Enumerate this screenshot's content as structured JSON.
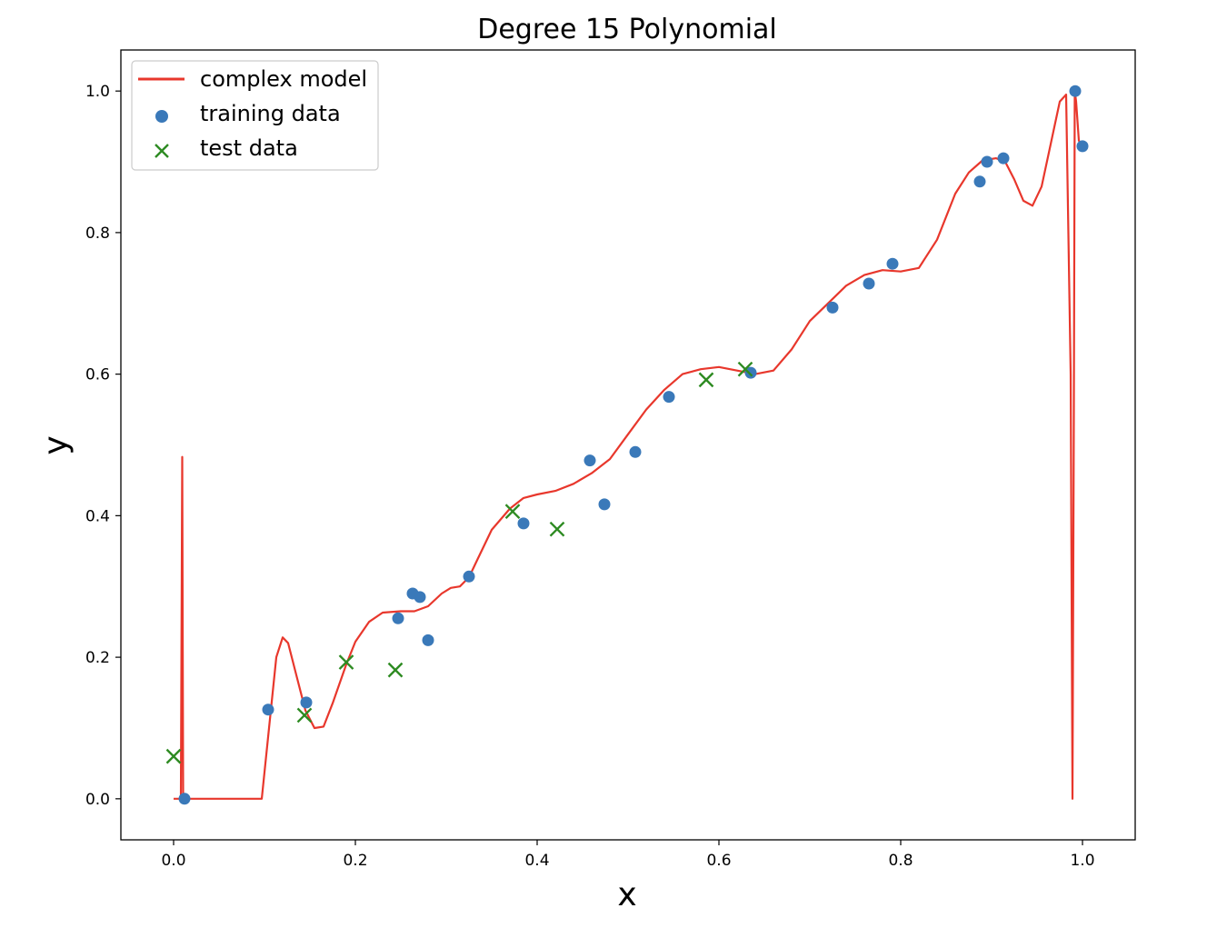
{
  "chart_data": {
    "type": "line+scatter",
    "title": "Degree 15 Polynomial",
    "xlabel": "x",
    "ylabel": "y",
    "xlim": [
      -0.058,
      1.058
    ],
    "ylim": [
      -0.058,
      1.058
    ],
    "xticks": [
      0.0,
      0.2,
      0.4,
      0.6,
      0.8,
      1.0
    ],
    "yticks": [
      0.0,
      0.2,
      0.4,
      0.6,
      0.8,
      1.0
    ],
    "xtick_labels": [
      "0.0",
      "0.2",
      "0.4",
      "0.6",
      "0.8",
      "1.0"
    ],
    "ytick_labels": [
      "0.0",
      "0.2",
      "0.4",
      "0.6",
      "0.8",
      "1.0"
    ],
    "legend_position": "upper-left",
    "colors": {
      "model": "#e8372c",
      "training": "#3a79b9",
      "test": "#2e8b22"
    },
    "series": [
      {
        "name": "complex model",
        "kind": "line",
        "x": [
          0.0,
          0.008,
          0.0095,
          0.0105,
          0.012,
          0.05,
          0.097,
          0.105,
          0.113,
          0.12,
          0.126,
          0.135,
          0.145,
          0.155,
          0.165,
          0.175,
          0.19,
          0.2,
          0.215,
          0.23,
          0.25,
          0.265,
          0.28,
          0.295,
          0.305,
          0.315,
          0.325,
          0.335,
          0.35,
          0.37,
          0.385,
          0.4,
          0.42,
          0.44,
          0.46,
          0.48,
          0.5,
          0.52,
          0.54,
          0.56,
          0.58,
          0.6,
          0.62,
          0.64,
          0.66,
          0.68,
          0.7,
          0.72,
          0.74,
          0.76,
          0.78,
          0.8,
          0.82,
          0.84,
          0.86,
          0.875,
          0.89,
          0.905,
          0.915,
          0.925,
          0.935,
          0.945,
          0.955,
          0.965,
          0.975,
          0.982,
          0.987,
          0.989,
          0.9905,
          0.9915,
          0.993,
          0.996,
          1.0
        ],
        "y": [
          0.0,
          0.0,
          0.483,
          0.0,
          0.0,
          0.0,
          0.0,
          0.1,
          0.2,
          0.228,
          0.22,
          0.175,
          0.125,
          0.1,
          0.102,
          0.135,
          0.19,
          0.222,
          0.25,
          0.263,
          0.265,
          0.265,
          0.272,
          0.29,
          0.298,
          0.3,
          0.313,
          0.34,
          0.38,
          0.41,
          0.425,
          0.43,
          0.435,
          0.445,
          0.46,
          0.48,
          0.515,
          0.55,
          0.578,
          0.6,
          0.607,
          0.61,
          0.605,
          0.6,
          0.605,
          0.635,
          0.675,
          0.7,
          0.725,
          0.74,
          0.747,
          0.745,
          0.75,
          0.79,
          0.855,
          0.885,
          0.902,
          0.905,
          0.9,
          0.875,
          0.845,
          0.838,
          0.865,
          0.925,
          0.985,
          0.995,
          0.6,
          0.0,
          0.55,
          1.0,
          0.985,
          0.93,
          0.922
        ]
      },
      {
        "name": "training data",
        "kind": "scatter",
        "marker": "circle",
        "x": [
          0.012,
          0.104,
          0.146,
          0.247,
          0.263,
          0.271,
          0.28,
          0.325,
          0.385,
          0.458,
          0.474,
          0.508,
          0.545,
          0.635,
          0.725,
          0.765,
          0.791,
          0.887,
          0.895,
          0.913,
          0.992,
          1.0
        ],
        "y": [
          0.0,
          0.126,
          0.136,
          0.255,
          0.29,
          0.285,
          0.224,
          0.314,
          0.389,
          0.478,
          0.416,
          0.49,
          0.568,
          0.602,
          0.694,
          0.728,
          0.756,
          0.872,
          0.9,
          0.905,
          1.0,
          0.922
        ]
      },
      {
        "name": "test data",
        "kind": "scatter",
        "marker": "x",
        "x": [
          0.0,
          0.144,
          0.19,
          0.244,
          0.373,
          0.422,
          0.586,
          0.629
        ],
        "y": [
          0.06,
          0.118,
          0.193,
          0.182,
          0.406,
          0.381,
          0.592,
          0.607
        ]
      }
    ]
  }
}
